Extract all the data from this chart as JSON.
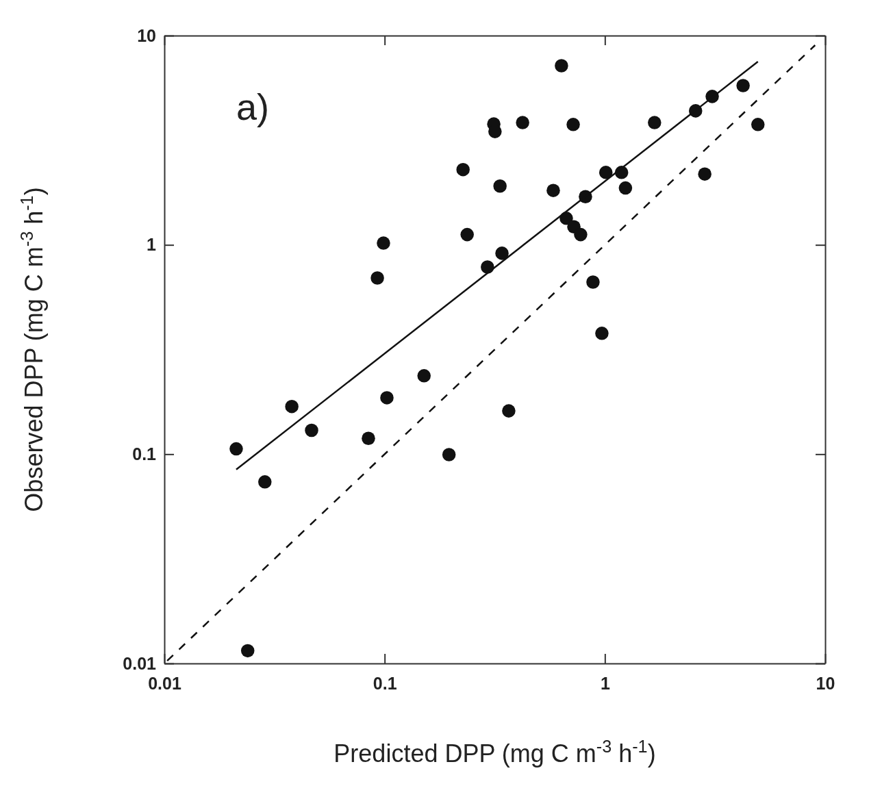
{
  "chart_data": {
    "type": "scatter",
    "xlabel": "Predicted DPP (mg C m$^{-3}$ h$^{-1}$)",
    "ylabel": "Observed DPP (mg C m$^{-3}$ h$^{-1}$)",
    "log": "xy",
    "xlim": [
      0.01,
      10
    ],
    "ylim": [
      0.01,
      10
    ],
    "xticks": [
      0.01,
      0.1,
      1,
      10
    ],
    "yticks": [
      0.01,
      0.1,
      1,
      10
    ],
    "grid": false,
    "annotations": [
      "a)"
    ],
    "series": [
      {
        "marker": "circle",
        "color": "#111111",
        "x": [
          0.0212,
          0.0286,
          0.0239,
          0.0379,
          0.0466,
          0.0844,
          0.1024,
          0.0927,
          0.0988,
          0.151,
          0.196,
          0.227,
          0.237,
          0.293,
          0.341,
          0.313,
          0.317,
          0.334,
          0.366,
          0.423,
          0.635,
          0.583,
          0.718,
          0.668,
          0.723,
          0.776,
          0.816,
          0.883,
          0.969,
          1.01,
          1.19,
          1.24,
          1.68,
          2.58,
          2.84,
          3.07,
          4.24,
          4.95
        ],
        "values": [
          0.106,
          0.0737,
          0.0115,
          0.169,
          0.13,
          0.119,
          0.186,
          0.695,
          1.02,
          0.237,
          0.0995,
          2.29,
          1.12,
          0.784,
          0.912,
          3.78,
          3.48,
          1.91,
          0.161,
          3.84,
          7.18,
          1.82,
          3.76,
          1.34,
          1.22,
          1.12,
          1.7,
          0.664,
          0.378,
          2.22,
          2.22,
          1.87,
          3.84,
          4.37,
          2.18,
          5.12,
          5.77,
          3.76
        ]
      },
      {
        "type": "line",
        "line_style": "solid",
        "color": "#111111",
        "x": [
          0.0212,
          4.95
        ],
        "values": [
          0.0844,
          7.51
        ]
      },
      {
        "type": "line",
        "line_style": "dashed",
        "color": "#111111",
        "x": [
          0.0103,
          9
        ],
        "values": [
          0.0103,
          9
        ]
      }
    ]
  }
}
